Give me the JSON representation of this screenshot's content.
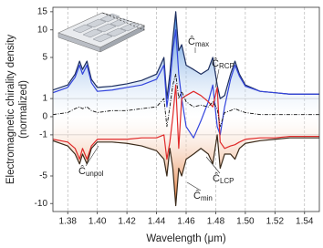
{
  "chart_data": {
    "type": "line",
    "xlabel": "Wavelength (μm)",
    "ylabel": [
      "Electromagnetic chirality density",
      "(normalized)"
    ],
    "yscale": "symlog",
    "grid": "x",
    "xlim": [
      1.37,
      1.55
    ],
    "xticks": [
      {
        "value": 1.38,
        "label": "1.38"
      },
      {
        "value": 1.4,
        "label": "1.40"
      },
      {
        "value": 1.42,
        "label": "1.42"
      },
      {
        "value": 1.44,
        "label": "1.44"
      },
      {
        "value": 1.46,
        "label": "1.46"
      },
      {
        "value": 1.48,
        "label": "1.48"
      },
      {
        "value": 1.5,
        "label": "1.50"
      },
      {
        "value": 1.52,
        "label": "1.52"
      },
      {
        "value": 1.54,
        "label": "1.54"
      }
    ],
    "ylim": [
      -12,
      16.5
    ],
    "yticks": [
      -10,
      -5,
      -1,
      0,
      1,
      5,
      10,
      15
    ],
    "series_symbol": "Ĉ",
    "x": [
      1.37,
      1.38,
      1.385,
      1.388,
      1.39,
      1.393,
      1.396,
      1.4,
      1.41,
      1.42,
      1.43,
      1.44,
      1.445,
      1.447,
      1.449,
      1.451,
      1.453,
      1.455,
      1.457,
      1.46,
      1.465,
      1.47,
      1.475,
      1.478,
      1.481,
      1.483,
      1.486,
      1.49,
      1.493,
      1.496,
      1.5,
      1.51,
      1.52,
      1.53,
      1.54,
      1.55
    ],
    "series": [
      {
        "name": "max",
        "color": "#1c2d5e",
        "fill": "#3a7fd8",
        "values": [
          1.6,
          2,
          3,
          4.5,
          3.5,
          4.5,
          2.5,
          1.8,
          1.9,
          2.1,
          2.4,
          3,
          5,
          1,
          3,
          8,
          15,
          6,
          7,
          4,
          3.5,
          3,
          3.5,
          5,
          2,
          1,
          1.2,
          3,
          4.5,
          3,
          2,
          1.5,
          1.4,
          1.3,
          1.3,
          1.3
        ]
      },
      {
        "name": "RCP",
        "color": "#3344dd",
        "values": [
          1.4,
          1.8,
          2.7,
          4,
          3,
          4,
          2.2,
          1.5,
          1.6,
          1.8,
          2,
          2.5,
          4,
          0.5,
          2,
          6,
          10,
          3,
          1,
          -0.5,
          -1.2,
          -0.2,
          0.8,
          2,
          -0.5,
          -1,
          0.5,
          2.5,
          4,
          2.8,
          1.9,
          1.5,
          1.4,
          1.3,
          1.3,
          1.3
        ]
      },
      {
        "name": "LCP",
        "color": "#e02a2a",
        "values": [
          -1.3,
          -1.5,
          -2,
          -3,
          -2,
          -3,
          -1.8,
          -1.3,
          -1.3,
          -1.3,
          -1.2,
          -1.2,
          -1,
          -3,
          -1.5,
          0,
          2,
          -2,
          1,
          1.2,
          1.5,
          1.2,
          0.8,
          0.5,
          1.8,
          -1.5,
          -2,
          -1.8,
          -1.7,
          -1.5,
          -1.3,
          -1.2,
          -1.2,
          -1.1,
          -1.1,
          -1.1
        ]
      },
      {
        "name": "min",
        "color": "#3a2a1a",
        "fill": "#e8782a",
        "values": [
          -1.4,
          -1.8,
          -2.5,
          -3.5,
          -2.5,
          -3.5,
          -2,
          -1.5,
          -1.5,
          -1.6,
          -1.8,
          -2.2,
          -3,
          -5,
          -2,
          -4,
          -10.5,
          -4,
          -5,
          -3,
          -2.5,
          -2,
          -2.5,
          -3.5,
          -1,
          -4,
          -2.5,
          -2.5,
          -3,
          -2,
          -1.6,
          -1.4,
          -1.3,
          -1.2,
          -1.2,
          -1.2
        ]
      },
      {
        "name": "unpol",
        "color": "#111111",
        "dash": true,
        "values": [
          0.1,
          0.2,
          0.4,
          0.5,
          0.4,
          0.5,
          0.3,
          0.2,
          0.3,
          0.3,
          0.4,
          0.5,
          1,
          -0.5,
          0.5,
          2,
          3,
          1,
          1.5,
          0.8,
          0.5,
          0.6,
          0.5,
          0.8,
          0.4,
          -0.5,
          0.2,
          0.3,
          0.4,
          0.3,
          0.2,
          0.1,
          0.1,
          0.1,
          0.1,
          0.1
        ]
      }
    ]
  }
}
